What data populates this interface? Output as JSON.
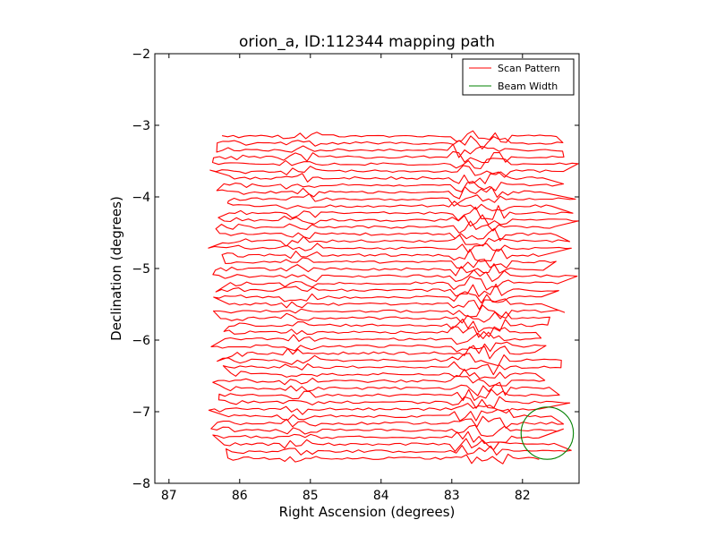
{
  "chart_data": {
    "type": "line",
    "title": "orion_a, ID:112344 mapping path",
    "xlabel": "Right Ascension (degrees)",
    "ylabel": "Declination (degrees)",
    "xlim": [
      87.2,
      81.2
    ],
    "ylim": [
      -8,
      -2
    ],
    "x_ticks": [
      87,
      86,
      85,
      84,
      83,
      82
    ],
    "y_ticks": [
      -2,
      -3,
      -4,
      -5,
      -6,
      -7,
      -8
    ],
    "x_tick_labels": [
      "87",
      "86",
      "85",
      "84",
      "83",
      "82"
    ],
    "y_tick_labels": [
      "−2",
      "−3",
      "−4",
      "−5",
      "−6",
      "−7",
      "−8"
    ],
    "legend_position": "top-right",
    "series": [
      {
        "name": "Scan Pattern",
        "color": "#ff0000",
        "scan_rows": {
          "dec_start": -3.15,
          "dec_end": -7.65,
          "row_count": 47,
          "ra_left_range": [
            86.45,
            86.1
          ],
          "ra_right_range": [
            81.85,
            81.2
          ],
          "ra_main_start": 86.0,
          "ra_main_end": 82.0
        }
      },
      {
        "name": "Beam Width",
        "color": "#008000",
        "circle": {
          "center_ra": 81.65,
          "center_dec": -7.3,
          "radius_deg": 0.37
        }
      }
    ]
  }
}
